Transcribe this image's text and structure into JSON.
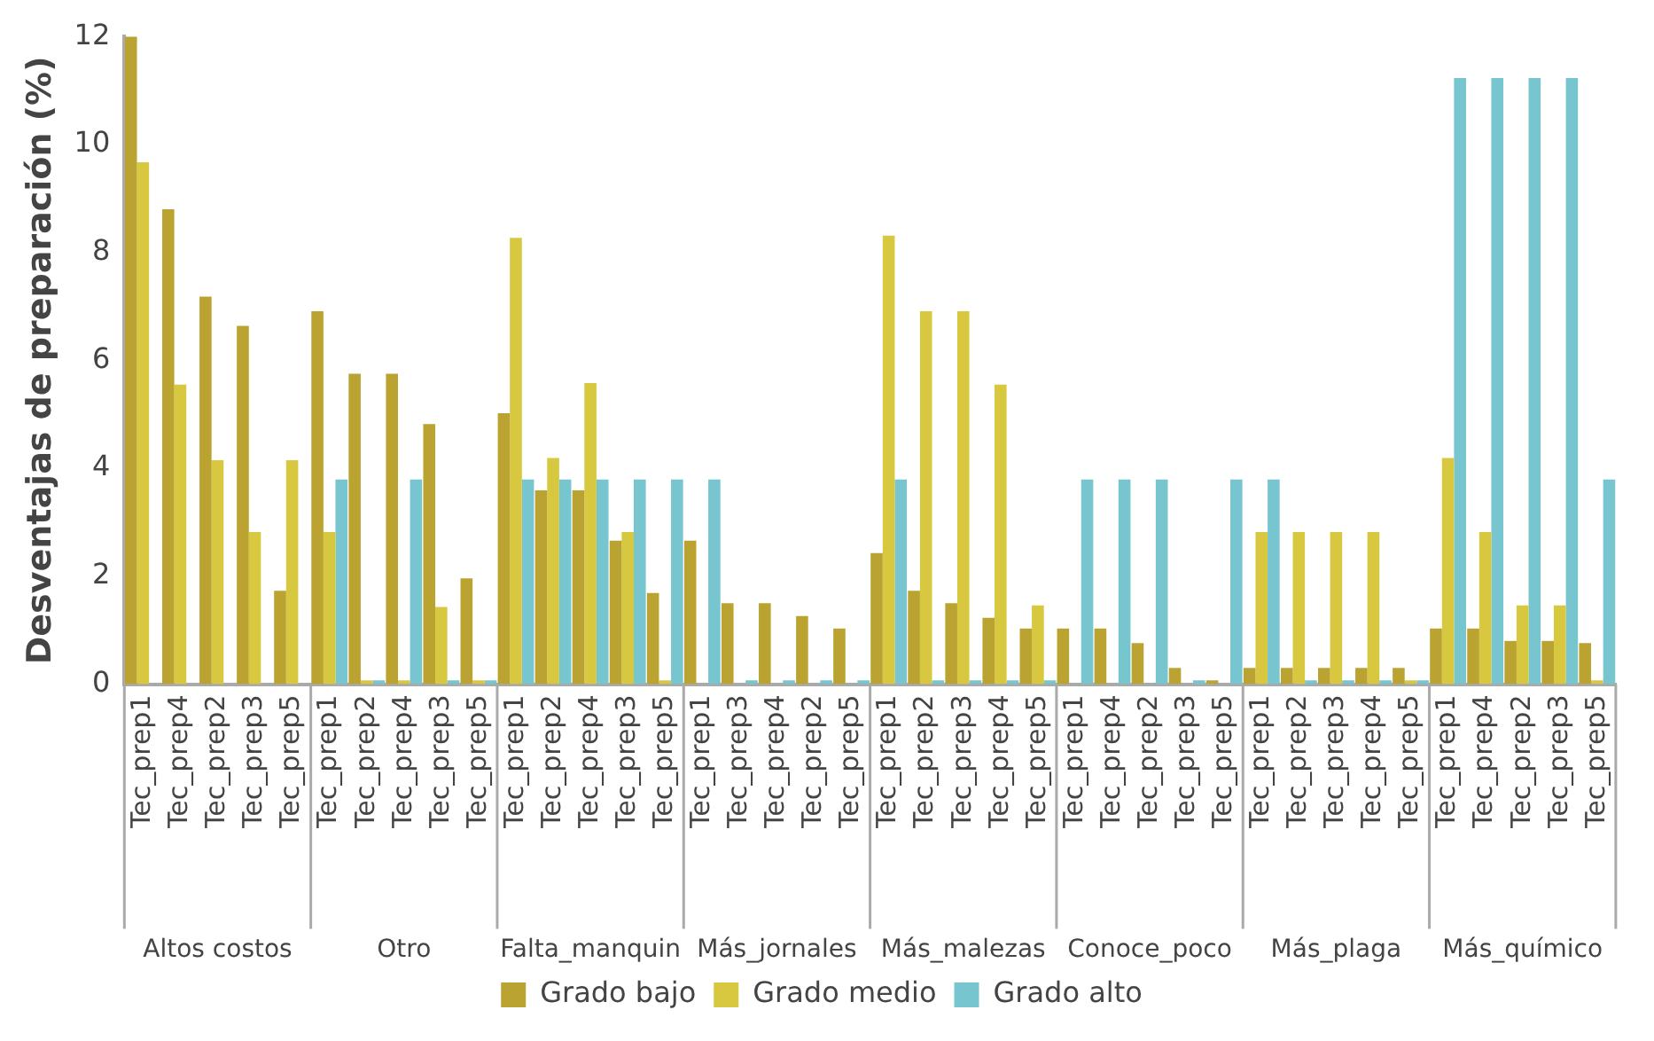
{
  "chart_data": {
    "type": "bar",
    "ylabel": "Desventajas de preparación (%)",
    "categories": [
      "Tec_prep1",
      "Tec_prep4",
      "Tec_prep2",
      "Tec_prep3",
      "Tec_prep5",
      "Tec_prep1",
      "Tec_prep2",
      "Tec_prep4",
      "Tec_prep3",
      "Tec_prep5",
      "Tec_prep1",
      "Tec_prep2",
      "Tec_prep4",
      "Tec_prep3",
      "Tec_prep5",
      "Tec_prep1",
      "Tec_prep3",
      "Tec_prep4",
      "Tec_prep2",
      "Tec_prep5",
      "Tec_prep1",
      "Tec_prep2",
      "Tec_prep3",
      "Tec_prep4",
      "Tec_prep5",
      "Tec_prep1",
      "Tec_prep4",
      "Tec_prep2",
      "Tec_prep3",
      "Tec_prep5",
      "Tec_prep1",
      "Tec_prep2",
      "Tec_prep3",
      "Tec_prep4",
      "Tec_prep5",
      "Tec_prep1",
      "Tec_prep4",
      "Tec_prep2",
      "Tec_prep3",
      "Tec_prep5"
    ],
    "annotations": [
      "Altos costos",
      "Otro",
      "Falta_manquin",
      "Más_jornales",
      "Más_malezas",
      "Conoce_poco",
      "Más_plaga",
      "Más_químico"
    ],
    "series": [
      {
        "name": "Grado bajo",
        "color": "#bba332",
        "values": [
          12,
          8.8,
          7.18,
          6.64,
          1.73,
          6.91,
          5.75,
          5.75,
          4.82,
          1.96,
          5.02,
          3.59,
          3.59,
          2.66,
          1.69,
          2.66,
          1.5,
          1.5,
          1.26,
          1.03,
          2.43,
          1.73,
          1.5,
          1.23,
          1.03,
          1.03,
          1.03,
          0.76,
          0.3,
          0.07,
          0.3,
          0.3,
          0.3,
          0.3,
          0.3,
          1.03,
          1.03,
          0.8,
          0.8,
          0.76
        ]
      },
      {
        "name": "Grado medio",
        "color": "#d7c840",
        "values": [
          9.67,
          5.55,
          4.15,
          2.82,
          4.15,
          2.82,
          0.07,
          0.07,
          1.43,
          0.07,
          8.27,
          4.19,
          5.58,
          2.82,
          0.07,
          0,
          0,
          0,
          0,
          0,
          8.31,
          6.91,
          6.91,
          5.55,
          1.46,
          0,
          0,
          0,
          0,
          0,
          2.82,
          2.82,
          2.82,
          2.82,
          0.07,
          4.19,
          2.82,
          1.46,
          1.46,
          0.07
        ]
      },
      {
        "name": "Grado alto",
        "color": "#77c5cf",
        "values": [
          0,
          0,
          0,
          0,
          0,
          3.79,
          0.07,
          3.79,
          0.07,
          0.07,
          3.79,
          3.79,
          3.79,
          3.79,
          3.79,
          3.79,
          0.07,
          0.07,
          0.07,
          0.07,
          3.79,
          0.07,
          0.07,
          0.07,
          0.07,
          3.79,
          3.79,
          3.79,
          0.07,
          3.79,
          3.79,
          0.07,
          0.07,
          0.07,
          0.07,
          11.23,
          11.23,
          11.23,
          11.23,
          3.79
        ]
      }
    ],
    "ylim": [
      0,
      12
    ],
    "yticks": [
      0,
      2,
      4,
      6,
      8,
      10,
      12
    ],
    "grid": false,
    "legend": "bottom"
  }
}
